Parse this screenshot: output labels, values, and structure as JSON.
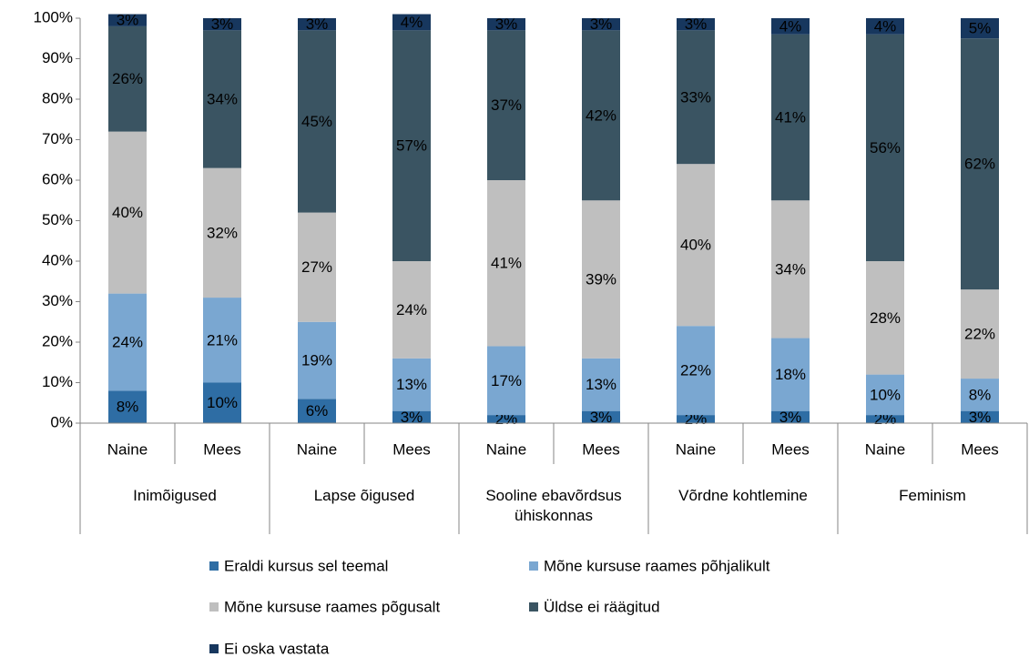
{
  "chart_data": {
    "type": "stacked_bar",
    "groups": [
      "Inimõigused",
      "Lapse õigused",
      "Sooline ebavõrdsus ühiskonnas",
      "Võrdne kohtlemine",
      "Feminism"
    ],
    "categories": [
      "Naine",
      "Mees",
      "Naine",
      "Mees",
      "Naine",
      "Mees",
      "Naine",
      "Mees",
      "Naine",
      "Mees"
    ],
    "series": [
      {
        "name": "Eraldi kursus sel teemal",
        "color": "#2e6da4",
        "values": [
          8,
          10,
          6,
          3,
          2,
          3,
          2,
          3,
          2,
          3
        ],
        "value_labels": [
          "8%",
          "10%",
          "6%",
          "3%",
          "2%",
          "3%",
          "2%",
          "3%",
          "2%",
          "3%"
        ]
      },
      {
        "name": "Mõne kursuse raames põhjalikult",
        "color": "#7aa7d1",
        "values": [
          24,
          21,
          19,
          13,
          17,
          13,
          22,
          18,
          10,
          8
        ],
        "value_labels": [
          "24%",
          "21%",
          "19%",
          "13%",
          "17%",
          "13%",
          "22%",
          "18%",
          "10%",
          "8%"
        ]
      },
      {
        "name": "Mõne kursuse raames põgusalt",
        "color": "#bfbfbf",
        "values": [
          40,
          32,
          27,
          24,
          41,
          39,
          40,
          34,
          28,
          22
        ],
        "value_labels": [
          "40%",
          "32%",
          "27%",
          "24%",
          "41%",
          "39%",
          "40%",
          "34%",
          "28%",
          "22%"
        ]
      },
      {
        "name": "Üldse ei räägitud",
        "color": "#3a5462",
        "values": [
          26,
          34,
          45,
          57,
          37,
          42,
          33,
          41,
          56,
          62
        ],
        "value_labels": [
          "26%",
          "34%",
          "45%",
          "57%",
          "37%",
          "42%",
          "33%",
          "41%",
          "56%",
          "62%"
        ]
      },
      {
        "name": "Ei oska vastata",
        "color": "#17375e",
        "values": [
          3,
          3,
          3,
          4,
          3,
          3,
          3,
          4,
          4,
          5
        ],
        "value_labels": [
          "3%",
          "3%",
          "3%",
          "4%",
          "3%",
          "3%",
          "3%",
          "4%",
          "4%",
          "5%"
        ]
      }
    ],
    "ylim": [
      0,
      100
    ],
    "yticks": [
      {
        "value": 0,
        "label": "0%"
      },
      {
        "value": 10,
        "label": "10%"
      },
      {
        "value": 20,
        "label": "20%"
      },
      {
        "value": 30,
        "label": "30%"
      },
      {
        "value": 40,
        "label": "40%"
      },
      {
        "value": 50,
        "label": "50%"
      },
      {
        "value": 60,
        "label": "60%"
      },
      {
        "value": 70,
        "label": "70%"
      },
      {
        "value": 80,
        "label": "80%"
      },
      {
        "value": 90,
        "label": "90%"
      },
      {
        "value": 100,
        "label": "100%"
      }
    ],
    "legend": "bottom"
  }
}
